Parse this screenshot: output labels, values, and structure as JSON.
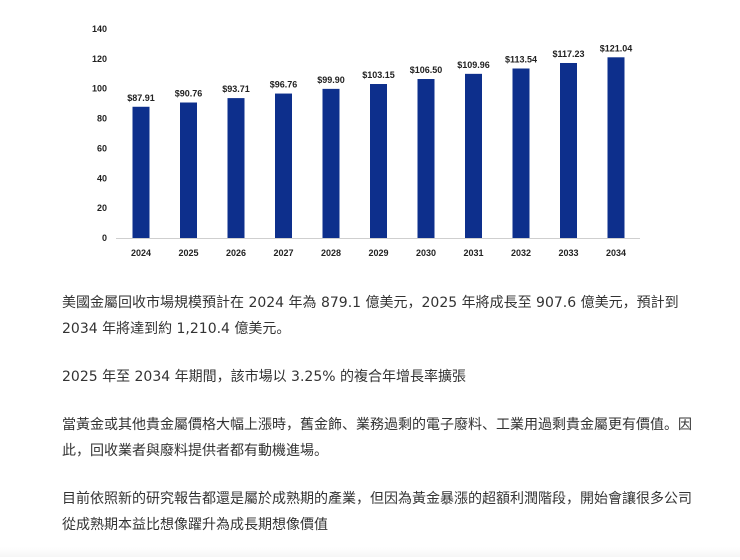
{
  "chart_data": {
    "type": "bar",
    "categories": [
      "2024",
      "2025",
      "2026",
      "2027",
      "2028",
      "2029",
      "2030",
      "2031",
      "2032",
      "2033",
      "2034"
    ],
    "values": [
      87.91,
      90.76,
      93.71,
      96.76,
      99.9,
      103.15,
      106.5,
      109.96,
      113.54,
      117.23,
      121.04
    ],
    "data_labels": [
      "$87.91",
      "$90.76",
      "$93.71",
      "$96.76",
      "$99.90",
      "$103.15",
      "$106.50",
      "$109.96",
      "$113.54",
      "$117.23",
      "$121.04"
    ],
    "yticks": [
      "0",
      "20",
      "40",
      "60",
      "80",
      "100",
      "120",
      "140"
    ],
    "ylim": [
      0,
      140
    ],
    "grid": false,
    "bar_color": "#0d2f8c",
    "title": "",
    "xlabel": "",
    "ylabel": ""
  },
  "article": {
    "p1": "美國金屬回收市場規模預計在 2024 年為 879.1 億美元，2025 年將成長至 907.6 億美元，預計到 2034 年將達到約 1,210.4 億美元。",
    "p2": "2025 年至 2034 年期間，該市場以 3.25% 的複合年增長率擴張",
    "p3": "當黃金或其他貴金屬價格大幅上漲時，舊金飾、業務過剩的電子廢料、工業用過剩貴金屬更有價值。因此，回收業者與廢料提供者都有動機進場。",
    "p4": "目前依照新的研究報告都還是屬於成熟期的產業，但因為黃金暴漲的超額利潤階段，開始會讓很多公司從成熟期本益比想像躍升為成長期想像價值"
  }
}
